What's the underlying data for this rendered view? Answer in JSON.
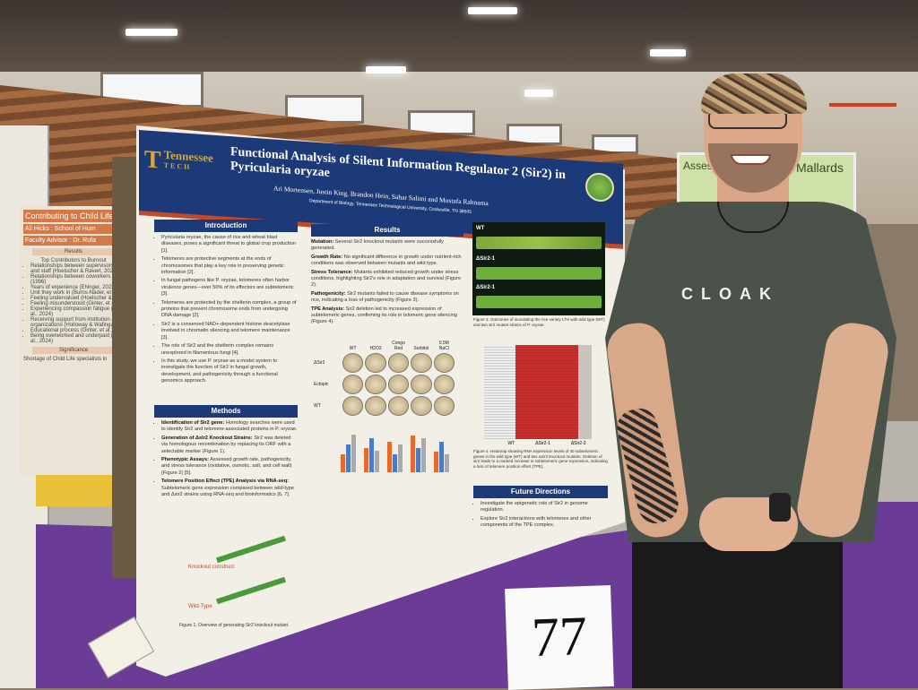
{
  "poster": {
    "title": "Functional Analysis of Silent Information Regulator 2 (Sir2) in Pyricularia oryzae",
    "authors": "Ari Mortensen, Justin King, Brandon Hein, Sahar Salimi and Mostafa Rahnama",
    "department": "Department of Biology, Tennessee Technological University, Cookeville, TN 38505",
    "logo": {
      "line1": "Tennessee",
      "line2": "TECH"
    },
    "introduction": {
      "heading": "Introduction",
      "bullets": [
        "Pyricularia oryzae, the cause of rice and wheat blast diseases, poses a significant threat to global crop production [1].",
        "Telomeres are protective segments at the ends of chromosomes that play a key role in preserving genetic information [2].",
        "In fungal pathogens like P. oryzae, telomeres often harbor virulence genes—over 50% of its effectors are subtelomeric [3].",
        "Telomeres are protected by the shelterin complex, a group of proteins that prevent chromosome ends from undergoing DNA damage [2].",
        "Sir2 is a conserved NAD+-dependent histone deacetylase involved in chromatin silencing and telomere maintenance [3].",
        "The role of Sir2 and the shelterin complex remains unexplored in filamentous fungi [4].",
        "In this study, we use P. oryzae as a model system to investigate the function of Sir2 in fungal growth, development, and pathogenicity through a functional genomics approach."
      ]
    },
    "methods": {
      "heading": "Methods",
      "items": [
        {
          "term": "Identification of Sir2 gene:",
          "text": "Homology searches were used to identify Sir2 and telomere-associated proteins in P. oryzae."
        },
        {
          "term": "Generation of Δsir2 Knockout Strains:",
          "text": "Sir2 was deleted via homologous recombination by replacing its ORF with a selectable marker (Figure 1)."
        },
        {
          "term": "Phenotypic Assays:",
          "text": "Assessed growth rate, pathogenicity, and stress tolerance (oxidative, osmotic, salt, and cell wall) (Figure 2) [5]."
        },
        {
          "term": "Telomere Position Effect (TPE) Analysis via RNA-seq:",
          "text": "Subtelomeric gene expression compared between wild-type and Δsir2 strains using RNA-seq and bioinformatics [6, 7]."
        }
      ]
    },
    "results": {
      "heading": "Results",
      "items": [
        {
          "term": "Mutation:",
          "text": "Several Sir2 knockout mutants were successfully generated."
        },
        {
          "term": "Growth Rate:",
          "text": "No significant difference in growth under nutrient-rich conditions was observed between mutants and wild type."
        },
        {
          "term": "Stress Tolerance:",
          "text": "Mutants exhibited reduced growth under stress conditions, highlighting Sir2's role in adaptation and survival (Figure 2)."
        },
        {
          "term": "Pathogenicity:",
          "text": "Sir2 mutants failed to cause disease symptoms on rice, indicating a loss of pathogenicity (Figure 3)."
        },
        {
          "term": "TPE Analysis:",
          "text": "Sir2 deletion led to increased expression of subtelomeric genes, confirming its role in telomeric gene silencing (Figure 4)."
        }
      ]
    },
    "figure1": {
      "caption": "Figure 1. Overview of generating Sir2 knockout mutant.",
      "label_knockout": "Knockout construct",
      "label_wildtype": "Wild-Type"
    },
    "figure2": {
      "plate_headers": [
        "WT",
        "H2O2",
        "Congo Red",
        "Sorbitol",
        "0.5M NaCl"
      ],
      "row_labels": [
        "ΔSir2",
        "Ectopic",
        "WT"
      ]
    },
    "figure3": {
      "labels": [
        "WT",
        "ΔSir2-1",
        "ΔSir2-1"
      ],
      "caption": "Figure 3. Outcomes of inoculating the rice variety LTH with wild type (WT) and two sir2 mutant strains of P. oryzae."
    },
    "figure4": {
      "column_labels": [
        "WT",
        "ΔSir2-1",
        "ΔSir2-2"
      ],
      "caption": "Figure 4. Heatmap showing RNA expression levels of 40 subtelomeric genes in the wild type (WT) and two Δsir2 knockout mutants. Deletion of sir2 leads to a marked increase in subtelomeric gene expression, indicating a loss of telomere position effect (TPE)."
    },
    "future": {
      "heading": "Future Directions",
      "bullets": [
        "Investigate the epigenetic role of Sir2 in genome regulation.",
        "Explore Sir2 interactions with telomeres and other components of the TPE complex."
      ]
    }
  },
  "left_poster": {
    "title": "Contributing to Child Life",
    "author": "Ali Hicks : School of Hum",
    "advisor": "Faculty Advisor : Dr. Rufa",
    "results_heading": "Results",
    "subheading": "Top Contributors to Burnout",
    "bullets": [
      "Relationships between supervisors and staff (Hoelscher & Ravert, 2021)",
      "Relationships between coworkers (1996)",
      "Years of experience (Ehinger, 2022)",
      "Unit they work in (Burns-Nader, et al.)",
      "Feeling undervalued (Hoelscher & R.)",
      "Feeling misunderstood (Ginter, et al.)",
      "Experiencing compassion fatigue (et al., 2024)",
      "Receiving support from institution and organizations (Holloway & Wafinga)",
      "Educational process (Ginter, et al.)",
      "Being overworked and underpaid (et al., 2024)"
    ],
    "significance_heading": "Significance",
    "significance_bullets": [
      "Shortage of Child Life specialists in"
    ]
  },
  "background_sign": {
    "text": "Mallards",
    "partial": "Assessing"
  },
  "shirt_text": "CLOAK",
  "table_sign": "77",
  "colors": {
    "poster_blue": "#1d3a78",
    "poster_red": "#c04a2a",
    "tablecloth": "#6a3c96",
    "shirt": "#4b524a"
  }
}
